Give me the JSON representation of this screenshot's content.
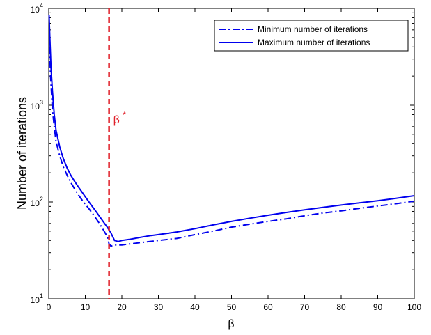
{
  "chart_data": {
    "type": "line",
    "xlabel": "β",
    "ylabel": "Number of iterations",
    "xlim": [
      0,
      100
    ],
    "ylim": [
      10,
      10000
    ],
    "yscale": "log",
    "grid": false,
    "legend_position": "top-right",
    "x_ticks": [
      "0",
      "10",
      "20",
      "30",
      "40",
      "50",
      "60",
      "70",
      "80",
      "90",
      "100"
    ],
    "y_ticks": [
      {
        "base": "10",
        "exp": "1"
      },
      {
        "base": "10",
        "exp": "2"
      },
      {
        "base": "10",
        "exp": "3"
      },
      {
        "base": "10",
        "exp": "4"
      }
    ],
    "annotation": {
      "base": "β",
      "sup": "*",
      "x": 16.5,
      "color": "#e0202a"
    },
    "series": [
      {
        "name": "Minimum number of iterations",
        "style": "dashdot",
        "color": "#0000ee",
        "points": [
          [
            0.2,
            4000
          ],
          [
            0.5,
            2000
          ],
          [
            1,
            900
          ],
          [
            1.5,
            600
          ],
          [
            2,
            420
          ],
          [
            3,
            300
          ],
          [
            4,
            230
          ],
          [
            5,
            190
          ],
          [
            6,
            160
          ],
          [
            7,
            138
          ],
          [
            8,
            120
          ],
          [
            9,
            106
          ],
          [
            10,
            95
          ],
          [
            11,
            85
          ],
          [
            12,
            76
          ],
          [
            13,
            67
          ],
          [
            14,
            59
          ],
          [
            15,
            51
          ],
          [
            16,
            44
          ],
          [
            16.5,
            37
          ],
          [
            17,
            35
          ],
          [
            18,
            36
          ],
          [
            20,
            36
          ],
          [
            25,
            38
          ],
          [
            30,
            40
          ],
          [
            35,
            42
          ],
          [
            40,
            46
          ],
          [
            45,
            50
          ],
          [
            50,
            55
          ],
          [
            55,
            59
          ],
          [
            60,
            63
          ],
          [
            65,
            67
          ],
          [
            70,
            72
          ],
          [
            75,
            77
          ],
          [
            80,
            81
          ],
          [
            85,
            86
          ],
          [
            90,
            91
          ],
          [
            95,
            96
          ],
          [
            100,
            102
          ]
        ]
      },
      {
        "name": "Maximum number of iterations",
        "style": "solid",
        "color": "#0000ee",
        "points": [
          [
            0.1,
            8500
          ],
          [
            0.3,
            5000
          ],
          [
            0.6,
            2500
          ],
          [
            1,
            1400
          ],
          [
            1.5,
            800
          ],
          [
            2,
            550
          ],
          [
            3,
            370
          ],
          [
            4,
            280
          ],
          [
            5,
            225
          ],
          [
            6,
            190
          ],
          [
            7,
            165
          ],
          [
            8,
            145
          ],
          [
            9,
            128
          ],
          [
            10,
            113
          ],
          [
            11,
            100
          ],
          [
            12,
            89
          ],
          [
            13,
            79
          ],
          [
            14,
            70
          ],
          [
            15,
            62
          ],
          [
            16,
            55
          ],
          [
            17,
            48
          ],
          [
            18,
            40
          ],
          [
            19,
            39
          ],
          [
            20,
            40
          ],
          [
            22,
            41
          ],
          [
            25,
            43
          ],
          [
            28,
            45
          ],
          [
            30,
            46
          ],
          [
            35,
            49
          ],
          [
            40,
            53
          ],
          [
            45,
            58
          ],
          [
            50,
            63
          ],
          [
            55,
            68
          ],
          [
            60,
            73
          ],
          [
            65,
            78
          ],
          [
            70,
            83
          ],
          [
            75,
            88
          ],
          [
            80,
            93
          ],
          [
            85,
            98
          ],
          [
            90,
            103
          ],
          [
            95,
            109
          ],
          [
            100,
            116
          ]
        ]
      }
    ]
  }
}
